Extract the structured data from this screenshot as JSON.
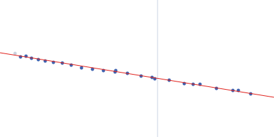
{
  "chart_data": {
    "type": "scatter",
    "xlim": [
      0,
      400
    ],
    "ylim": [
      0,
      200
    ],
    "grid": false,
    "tick_labels": false,
    "series": [
      {
        "type": "line",
        "color": "#d3dae8",
        "x": [
          230,
          230
        ],
        "values": [
          0,
          200
        ]
      },
      {
        "type": "line",
        "color": "#e0201b",
        "x": [
          0,
          400
        ],
        "values": [
          123,
          58
        ]
      },
      {
        "type": "scatter",
        "marker": "circle",
        "color": "#c9d1de",
        "x": [
          22
        ],
        "values": [
          122
        ]
      },
      {
        "type": "scatter",
        "marker": "circle",
        "color": "#3f63b0",
        "x": [
          30,
          38,
          46,
          56,
          66,
          78,
          91,
          104,
          119,
          135,
          151,
          168,
          169,
          186,
          206,
          222,
          226,
          247,
          269,
          282,
          292,
          316,
          340,
          348,
          366
        ],
        "values": [
          117,
          118,
          115,
          113,
          111,
          109,
          108,
          105,
          101,
          99,
          97,
          95,
          97,
          93,
          89,
          87,
          85,
          83,
          78,
          77,
          77,
          71,
          68,
          68,
          63
        ]
      }
    ]
  }
}
